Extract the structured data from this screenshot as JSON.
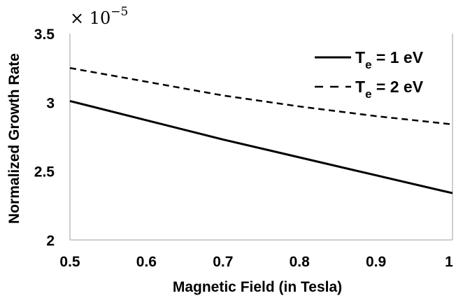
{
  "chart_data": {
    "type": "line",
    "title": "",
    "xlabel": "Magnetic Field (in Tesla)",
    "ylabel": "Normalized Growth Rate",
    "y_multiplier": {
      "base": "× 10",
      "exponent": "−5"
    },
    "xlim": [
      0.5,
      1
    ],
    "ylim": [
      2,
      3.5
    ],
    "x_ticks": [
      "0.5",
      "0.6",
      "0.7",
      "0.8",
      "0.9",
      "1"
    ],
    "y_ticks": [
      "2",
      "2.5",
      "3",
      "3.5"
    ],
    "grid": false,
    "legend_position": "top-right",
    "x": [
      0.5,
      0.6,
      0.7,
      0.8,
      0.9,
      1.0
    ],
    "series": [
      {
        "legend_main": "T",
        "legend_sub": "e",
        "legend_rest": " = 1 eV",
        "style": "solid",
        "values": [
          3.01,
          2.87,
          2.73,
          2.6,
          2.47,
          2.34
        ]
      },
      {
        "legend_main": "T",
        "legend_sub": "e",
        "legend_rest": " = 2 eV",
        "style": "dashed",
        "values": [
          3.25,
          3.15,
          3.05,
          2.97,
          2.9,
          2.84
        ]
      }
    ]
  }
}
